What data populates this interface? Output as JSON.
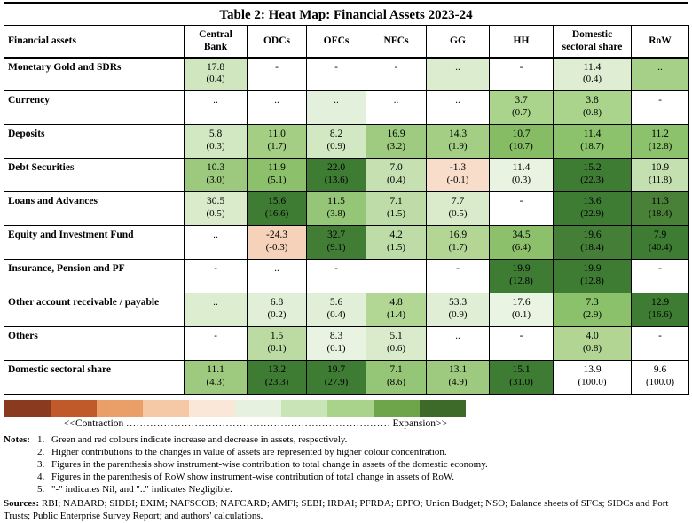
{
  "chart_data": {
    "type": "heatmap",
    "title": "Table 2: Heat Map: Financial Assets 2023-24",
    "row_header": "Financial assets",
    "columns": [
      "Central Bank",
      "ODCs",
      "OFCs",
      "NFCs",
      "GG",
      "HH",
      "Domestic sectoral share",
      "RoW"
    ],
    "rows": [
      {
        "label": "Monetary Gold and SDRs",
        "cells": [
          {
            "v": "17.8",
            "p": "(0.4)",
            "bg": "#cfe6bf"
          },
          {
            "v": "-",
            "p": "",
            "bg": "#ffffff"
          },
          {
            "v": "-",
            "p": "",
            "bg": "#ffffff"
          },
          {
            "v": "-",
            "p": "",
            "bg": "#ffffff"
          },
          {
            "v": "..",
            "p": "",
            "bg": "#dcecce"
          },
          {
            "v": "-",
            "p": "",
            "bg": "#ffffff"
          },
          {
            "v": "11.4",
            "p": "(0.4)",
            "bg": "#dfeed3"
          },
          {
            "v": "..",
            "p": "",
            "bg": "#a6cf88"
          }
        ]
      },
      {
        "label": "Currency",
        "cells": [
          {
            "v": "..",
            "p": "",
            "bg": "#ffffff"
          },
          {
            "v": "..",
            "p": "",
            "bg": "#ffffff"
          },
          {
            "v": "..",
            "p": "",
            "bg": "#e3f0db"
          },
          {
            "v": "..",
            "p": "",
            "bg": "#ffffff"
          },
          {
            "v": "..",
            "p": "",
            "bg": "#ffffff"
          },
          {
            "v": "3.7",
            "p": "(0.7)",
            "bg": "#aad48c"
          },
          {
            "v": "3.8",
            "p": "(0.8)",
            "bg": "#aad48c"
          },
          {
            "v": "-",
            "p": "",
            "bg": "#ffffff"
          }
        ]
      },
      {
        "label": "Deposits",
        "cells": [
          {
            "v": "5.8",
            "p": "(0.3)",
            "bg": "#d2e8c2"
          },
          {
            "v": "11.0",
            "p": "(1.7)",
            "bg": "#a3ce84"
          },
          {
            "v": "8.2",
            "p": "(0.9)",
            "bg": "#d2e8c2"
          },
          {
            "v": "16.9",
            "p": "(3.2)",
            "bg": "#9ecb7f"
          },
          {
            "v": "14.3",
            "p": "(1.9)",
            "bg": "#a3ce84"
          },
          {
            "v": "10.7",
            "p": "(10.7)",
            "bg": "#86bc64"
          },
          {
            "v": "11.4",
            "p": "(18.7)",
            "bg": "#8cc26c"
          },
          {
            "v": "11.2",
            "p": "(12.8)",
            "bg": "#8cc26c"
          }
        ]
      },
      {
        "label": "Debt Securities",
        "cells": [
          {
            "v": "10.3",
            "p": "(3.0)",
            "bg": "#9cc97d"
          },
          {
            "v": "11.9",
            "p": "(5.1)",
            "bg": "#8cc06b"
          },
          {
            "v": "22.0",
            "p": "(13.6)",
            "bg": "#3e7b33"
          },
          {
            "v": "7.0",
            "p": "(0.4)",
            "bg": "#c6e0b1"
          },
          {
            "v": "-1.3",
            "p": "(-0.1)",
            "bg": "#f8ddcb"
          },
          {
            "v": "11.4",
            "p": "(0.3)",
            "bg": "#e9f3e1"
          },
          {
            "v": "15.2",
            "p": "(22.3)",
            "bg": "#3e7b33"
          },
          {
            "v": "10.9",
            "p": "(11.8)",
            "bg": "#c4dfb0"
          }
        ]
      },
      {
        "label": "Loans and Advances",
        "cells": [
          {
            "v": "30.5",
            "p": "(0.5)",
            "bg": "#d9ebcb"
          },
          {
            "v": "15.6",
            "p": "(16.6)",
            "bg": "#3e7b33"
          },
          {
            "v": "11.5",
            "p": "(3.8)",
            "bg": "#95c577"
          },
          {
            "v": "7.1",
            "p": "(1.5)",
            "bg": "#bedca7"
          },
          {
            "v": "7.7",
            "p": "(0.5)",
            "bg": "#d9ebcb"
          },
          {
            "v": "-",
            "p": "",
            "bg": "#ffffff"
          },
          {
            "v": "13.6",
            "p": "(22.9)",
            "bg": "#3e7b33"
          },
          {
            "v": "11.3",
            "p": "(18.4)",
            "bg": "#4a8139"
          }
        ]
      },
      {
        "label": "Equity and Investment Fund",
        "cells": [
          {
            "v": "..",
            "p": "",
            "bg": "#ffffff"
          },
          {
            "v": "-24.3",
            "p": "(-0.3)",
            "bg": "#f6d2bb"
          },
          {
            "v": "32.7",
            "p": "(9.1)",
            "bg": "#417d35"
          },
          {
            "v": "4.2",
            "p": "(1.5)",
            "bg": "#bedca7"
          },
          {
            "v": "16.9",
            "p": "(1.7)",
            "bg": "#b3d695"
          },
          {
            "v": "34.5",
            "p": "(6.4)",
            "bg": "#8cc06b"
          },
          {
            "v": "19.6",
            "p": "(18.4)",
            "bg": "#447e37"
          },
          {
            "v": "7.9",
            "p": "(40.4)",
            "bg": "#3e7b33"
          }
        ]
      },
      {
        "label": "Insurance, Pension and PF",
        "cells": [
          {
            "v": "-",
            "p": "",
            "bg": "#ffffff"
          },
          {
            "v": "..",
            "p": "",
            "bg": "#ffffff"
          },
          {
            "v": "-",
            "p": "",
            "bg": "#ffffff"
          },
          {
            "v": "",
            "p": "",
            "bg": "#ffffff"
          },
          {
            "v": "-",
            "p": "",
            "bg": "#ffffff"
          },
          {
            "v": "19.9",
            "p": "(12.8)",
            "bg": "#3e7b33"
          },
          {
            "v": "19.9",
            "p": "(12.8)",
            "bg": "#3e7b33"
          },
          {
            "v": "-",
            "p": "",
            "bg": "#ffffff"
          }
        ]
      },
      {
        "label": "Other account receivable / payable",
        "cells": [
          {
            "v": "..",
            "p": "",
            "bg": "#dcedd0"
          },
          {
            "v": "6.8",
            "p": "(0.2)",
            "bg": "#e2efd8"
          },
          {
            "v": "5.6",
            "p": "(0.4)",
            "bg": "#e2efd8"
          },
          {
            "v": "4.8",
            "p": "(1.4)",
            "bg": "#b2d694"
          },
          {
            "v": "53.3",
            "p": "(0.9)",
            "bg": "#dfeed4"
          },
          {
            "v": "17.6",
            "p": "(0.1)",
            "bg": "#eaf4e3"
          },
          {
            "v": "7.3",
            "p": "(2.9)",
            "bg": "#8bc16a"
          },
          {
            "v": "12.9",
            "p": "(16.6)",
            "bg": "#3e7b33"
          }
        ]
      },
      {
        "label": "Others",
        "cells": [
          {
            "v": "-",
            "p": "",
            "bg": "#ffffff"
          },
          {
            "v": "1.5",
            "p": "(0.1)",
            "bg": "#bcdba2"
          },
          {
            "v": "8.3",
            "p": "(0.1)",
            "bg": "#e9f3e1"
          },
          {
            "v": "5.1",
            "p": "(0.6)",
            "bg": "#d9ebcb"
          },
          {
            "v": "..",
            "p": "",
            "bg": "#ffffff"
          },
          {
            "v": "-",
            "p": "",
            "bg": "#ffffff"
          },
          {
            "v": "4.0",
            "p": "(0.8)",
            "bg": "#b2d593"
          },
          {
            "v": "-",
            "p": "",
            "bg": "#ffffff"
          }
        ]
      },
      {
        "label": "Domestic sectoral share",
        "cells": [
          {
            "v": "11.1",
            "p": "(4.3)",
            "bg": "#9dca7f"
          },
          {
            "v": "13.2",
            "p": "(23.3)",
            "bg": "#3e7b33"
          },
          {
            "v": "19.7",
            "p": "(27.9)",
            "bg": "#3e7b33"
          },
          {
            "v": "7.1",
            "p": "(8.6)",
            "bg": "#95c577"
          },
          {
            "v": "13.1",
            "p": "(4.9)",
            "bg": "#9dca7f"
          },
          {
            "v": "15.1",
            "p": "(31.0)",
            "bg": "#3e7b33"
          },
          {
            "v": "13.9",
            "p": "(100.0)",
            "bg": "#ffffff"
          },
          {
            "v": "9.6",
            "p": "(100.0)",
            "bg": "#ffffff"
          }
        ]
      }
    ],
    "legend": {
      "colors": [
        "#8a3a1e",
        "#c05a2a",
        "#ea9e68",
        "#f5c8a6",
        "#fbe7d8",
        "#e7f1df",
        "#c9e4b6",
        "#a9d38b",
        "#6fa54a",
        "#3d6a28"
      ],
      "contraction": "<<Contraction",
      "expansion": "Expansion>>",
      "dots": ".............................................................................................................."
    }
  },
  "notes": {
    "label": "Notes:",
    "items": [
      "Green and red colours indicate increase and decrease in assets, respectively.",
      "Higher contributions to the changes in value of assets are represented by higher colour concentration.",
      "Figures in the parenthesis show instrument-wise contribution to total change in assets of the domestic economy.",
      "Figures in the parenthesis of RoW show instrument-wise contribution of total change in assets of RoW.",
      "\"-\" indicates Nil, and \"..\" indicates Negligible."
    ]
  },
  "sources": {
    "label": "Sources:",
    "text": " RBI; NABARD; SIDBI; EXIM; NAFSCOB; NAFCARD; AMFI; SEBI; IRDAI; PFRDA; EPFO; Union Budget; NSO; Balance sheets of SFCs; SIDCs and Port Trusts; Public Enterprise Survey Report; and authors' calculations."
  }
}
